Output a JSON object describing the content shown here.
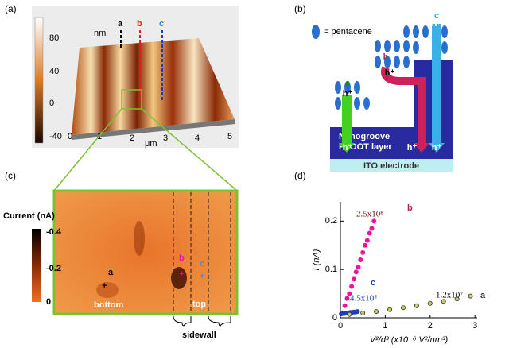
{
  "panel_a": {
    "label": "(a)",
    "colorbar_ticks": [
      "80",
      "40",
      "0",
      "-40"
    ],
    "unit": "nm",
    "x_ticks": [
      "0",
      "1",
      "2",
      "3",
      "4",
      "5"
    ],
    "x_unit": "μm",
    "markers": [
      "a",
      "b",
      "c"
    ]
  },
  "panel_b": {
    "label": "(b)",
    "legend": "= pentacene",
    "paths": [
      "a",
      "b",
      "c"
    ],
    "carrier": "h⁺",
    "layer": [
      "Nanogroove",
      "PEDOT layer"
    ],
    "electrode": "ITO electrode"
  },
  "panel_c": {
    "label": "(c)",
    "colorbar_title": "Current (nA)",
    "colorbar_ticks": [
      "-0.4",
      "-0.2",
      "0"
    ],
    "markers": [
      "a",
      "b",
      "c"
    ],
    "regions": [
      "bottom",
      "top",
      "sidewall"
    ]
  },
  "chart_data": {
    "type": "scatter",
    "panel_label": "(d)",
    "x_label": "V²/d³ (x10⁻⁶ V²/nm³)",
    "y_label": "I (nA)",
    "xlim": [
      0,
      3.05
    ],
    "ylim": [
      0,
      0.24
    ],
    "xticks": [
      0,
      1,
      2,
      3
    ],
    "yticks": [
      0,
      0.1,
      0.2
    ],
    "series": [
      {
        "name": "b",
        "color": "#e8179a",
        "x": [
          0.05,
          0.1,
          0.15,
          0.2,
          0.25,
          0.3,
          0.35,
          0.4,
          0.45,
          0.5,
          0.55,
          0.6,
          0.65,
          0.7,
          0.75
        ],
        "values": [
          0.01,
          0.025,
          0.04,
          0.05,
          0.065,
          0.08,
          0.095,
          0.105,
          0.12,
          0.135,
          0.15,
          0.16,
          0.175,
          0.185,
          0.2
        ]
      },
      {
        "name": "c",
        "color": "#1f3fb8",
        "x": [
          0.02,
          0.06,
          0.1,
          0.14,
          0.18,
          0.22,
          0.26,
          0.3,
          0.34,
          0.38
        ],
        "values": [
          0.008,
          0.009,
          0.009,
          0.01,
          0.01,
          0.011,
          0.011,
          0.012,
          0.012,
          0.013
        ]
      },
      {
        "name": "a",
        "color": "#333333",
        "x": [
          0.2,
          0.5,
          0.8,
          1.1,
          1.4,
          1.7,
          2.0,
          2.3,
          2.6,
          2.9
        ],
        "values": [
          0.007,
          0.01,
          0.013,
          0.017,
          0.021,
          0.025,
          0.03,
          0.034,
          0.039,
          0.045
        ]
      }
    ],
    "annotations": [
      "2.5x10⁸",
      "4.5x10⁵",
      "1.2x10⁷"
    ]
  }
}
